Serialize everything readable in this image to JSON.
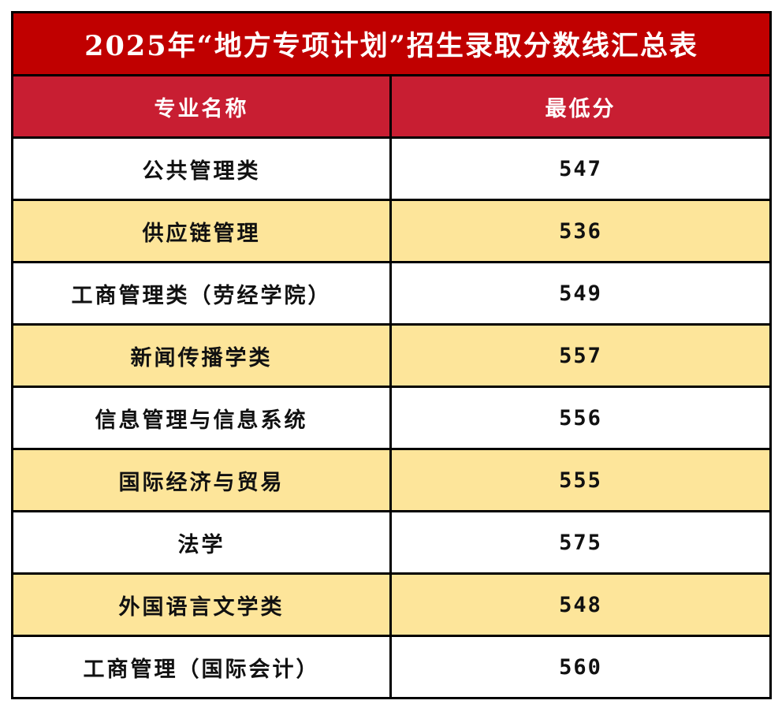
{
  "title": "2025年“地方专项计划”招生录取分数线汇总表",
  "colors": {
    "title_bg": "#c00000",
    "header_bg": "#c81e32",
    "row_alt_bg": "#fde59a",
    "row_bg": "#ffffff",
    "border": "#000000"
  },
  "headers": {
    "major": "专业名称",
    "min_score": "最低分"
  },
  "rows": [
    {
      "major": "公共管理类",
      "min_score": "547"
    },
    {
      "major": "供应链管理",
      "min_score": "536"
    },
    {
      "major": "工商管理类（劳经学院）",
      "min_score": "549"
    },
    {
      "major": "新闻传播学类",
      "min_score": "557"
    },
    {
      "major": "信息管理与信息系统",
      "min_score": "556"
    },
    {
      "major": "国际经济与贸易",
      "min_score": "555"
    },
    {
      "major": "法学",
      "min_score": "575"
    },
    {
      "major": "外国语言文学类",
      "min_score": "548"
    },
    {
      "major": "工商管理（国际会计）",
      "min_score": "560"
    }
  ]
}
